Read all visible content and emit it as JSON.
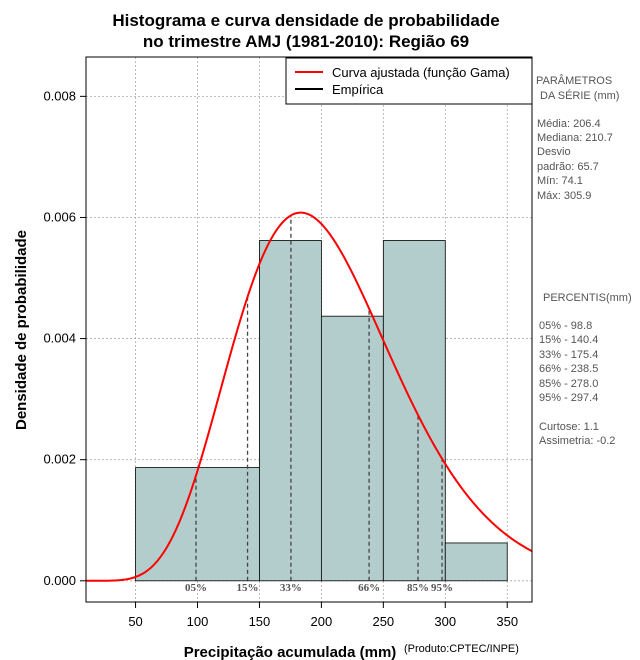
{
  "chart_data": {
    "type": "histogram",
    "title_lines": [
      "Histograma e curva densidade de probabilidade",
      "no trimestre AMJ (1981-2010): Região 69"
    ],
    "xlabel": "Precipitação acumulada (mm)",
    "ylabel": "Densidade de probabilidade",
    "credit": "(Produto:CPTEC/INPE)",
    "xlim": [
      10,
      370
    ],
    "ylim": [
      -0.00035,
      0.00865
    ],
    "x_ticks": [
      50,
      100,
      150,
      200,
      250,
      300,
      350
    ],
    "y_ticks": [
      0.0,
      0.002,
      0.004,
      0.006,
      0.008
    ],
    "y_tick_labels": [
      "0.000",
      "0.002",
      "0.004",
      "0.006",
      "0.008"
    ],
    "bins": [
      {
        "start": 50,
        "end": 150,
        "density": 0.00187
      },
      {
        "start": 150,
        "end": 200,
        "density": 0.00562
      },
      {
        "start": 200,
        "end": 250,
        "density": 0.00437
      },
      {
        "start": 250,
        "end": 300,
        "density": 0.00562
      },
      {
        "start": 300,
        "end": 350,
        "density": 0.000625
      }
    ],
    "gamma_fit": {
      "shape": 8.97,
      "scale": 23.0
    },
    "percentile_lines": [
      {
        "label": "05%",
        "value": 98.8
      },
      {
        "label": "15%",
        "value": 140.4
      },
      {
        "label": "33%",
        "value": 175.4
      },
      {
        "label": "66%",
        "value": 238.5
      },
      {
        "label": "85%",
        "value": 278.0
      },
      {
        "label": "95%",
        "value": 297.4
      }
    ],
    "legend": {
      "position": "top-right",
      "entries": [
        {
          "label": "Curva ajustada (função Gama)",
          "color": "#ff0000"
        },
        {
          "label": "Empírica",
          "color": "#000000"
        }
      ]
    },
    "colors": {
      "bar_fill": "#b3cdcd",
      "curve": "#ff0000",
      "grid": "#aaaaaa"
    }
  },
  "stats_panel": {
    "params_title": [
      "PARÂMETROS",
      "DA SÉRIE (mm)"
    ],
    "params": [
      "Média:  206.4",
      "Mediana:  210.7",
      "Desvio",
      "padrão:  65.7",
      "Mín:  74.1",
      "Máx:  305.9"
    ],
    "percentis_title": "PERCENTIS(mm)",
    "percentis": [
      "05% -   98.8",
      "15% -   140.4",
      "33% -   175.4",
      "66% -   238.5",
      "85% -   278.0",
      "95% -   297.4"
    ],
    "extra": [
      "Curtose:  1.1",
      "Assimetria:  -0.2"
    ]
  }
}
